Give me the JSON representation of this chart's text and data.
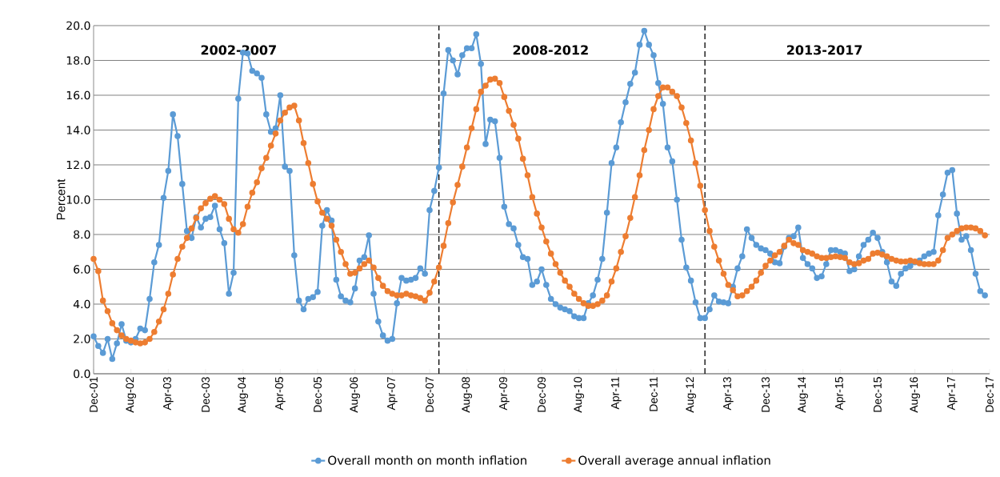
{
  "chart_data": {
    "type": "line",
    "ylabel": "Percent",
    "annotations": [
      "2002-2007",
      "2008-2012",
      "2013-2017"
    ],
    "x": [
      "2001-12",
      "2002-01",
      "2002-02",
      "2002-03",
      "2002-04",
      "2002-05",
      "2002-06",
      "2002-07",
      "2002-08",
      "2002-09",
      "2002-10",
      "2002-11",
      "2002-12",
      "2003-01",
      "2003-02",
      "2003-03",
      "2003-04",
      "2003-05",
      "2003-06",
      "2003-07",
      "2003-08",
      "2003-09",
      "2003-10",
      "2003-11",
      "2003-12",
      "2004-01",
      "2004-02",
      "2004-03",
      "2004-04",
      "2004-05",
      "2004-06",
      "2004-07",
      "2004-08",
      "2004-09",
      "2004-10",
      "2004-11",
      "2004-12",
      "2005-01",
      "2005-02",
      "2005-03",
      "2005-04",
      "2005-05",
      "2005-06",
      "2005-07",
      "2005-08",
      "2005-09",
      "2005-10",
      "2005-11",
      "2005-12",
      "2006-01",
      "2006-02",
      "2006-03",
      "2006-04",
      "2006-05",
      "2006-06",
      "2006-07",
      "2006-08",
      "2006-09",
      "2006-10",
      "2006-11",
      "2006-12",
      "2007-01",
      "2007-02",
      "2007-03",
      "2007-04",
      "2007-05",
      "2007-06",
      "2007-07",
      "2007-08",
      "2007-09",
      "2007-10",
      "2007-11",
      "2007-12",
      "2008-01",
      "2008-02",
      "2008-03",
      "2008-04",
      "2008-05",
      "2008-06",
      "2008-07",
      "2008-08",
      "2008-09",
      "2008-10",
      "2008-11",
      "2008-12",
      "2009-01",
      "2009-02",
      "2009-03",
      "2009-04",
      "2009-05",
      "2009-06",
      "2009-07",
      "2009-08",
      "2009-09",
      "2009-10",
      "2009-11",
      "2009-12",
      "2010-01",
      "2010-02",
      "2010-03",
      "2010-04",
      "2010-05",
      "2010-06",
      "2010-07",
      "2010-08",
      "2010-09",
      "2010-10",
      "2010-11",
      "2010-12",
      "2011-01",
      "2011-02",
      "2011-03",
      "2011-04",
      "2011-05",
      "2011-06",
      "2011-07",
      "2011-08",
      "2011-09",
      "2011-10",
      "2011-11",
      "2011-12",
      "2012-01",
      "2012-02",
      "2012-03",
      "2012-04",
      "2012-05",
      "2012-06",
      "2012-07",
      "2012-08",
      "2012-09",
      "2012-10",
      "2012-11",
      "2012-12",
      "2013-01",
      "2013-02",
      "2013-03",
      "2013-04",
      "2013-05",
      "2013-06",
      "2013-07",
      "2013-08",
      "2013-09",
      "2013-10",
      "2013-11",
      "2013-12",
      "2014-01",
      "2014-02",
      "2014-03",
      "2014-04",
      "2014-05",
      "2014-06",
      "2014-07",
      "2014-08",
      "2014-09",
      "2014-10",
      "2014-11",
      "2014-12",
      "2015-01",
      "2015-02",
      "2015-03",
      "2015-04",
      "2015-05",
      "2015-06",
      "2015-07",
      "2015-08",
      "2015-09",
      "2015-10",
      "2015-11",
      "2015-12",
      "2016-01",
      "2016-02",
      "2016-03",
      "2016-04",
      "2016-05",
      "2016-06",
      "2016-07",
      "2016-08",
      "2016-09",
      "2016-10",
      "2016-11",
      "2016-12",
      "2017-01",
      "2017-02",
      "2017-03",
      "2017-04",
      "2017-05",
      "2017-06",
      "2017-07",
      "2017-08",
      "2017-09",
      "2017-10",
      "2017-11"
    ],
    "series": [
      {
        "name": "Overall month on month inflation",
        "color": "#5b9bd5",
        "values": [
          2.15,
          1.6,
          1.2,
          2.0,
          0.85,
          1.75,
          2.85,
          1.9,
          1.8,
          2.0,
          2.6,
          2.5,
          4.3,
          6.4,
          7.4,
          10.1,
          11.65,
          14.9,
          13.65,
          10.9,
          8.2,
          7.8,
          9.0,
          8.4,
          8.9,
          9.0,
          9.65,
          8.3,
          7.5,
          4.6,
          5.8,
          15.8,
          18.45,
          18.4,
          17.4,
          17.25,
          17.0,
          14.9,
          13.9,
          14.1,
          16.0,
          11.9,
          11.65,
          6.8,
          4.2,
          3.7,
          4.3,
          4.4,
          4.7,
          8.5,
          9.4,
          8.8,
          5.4,
          4.45,
          4.2,
          4.1,
          4.9,
          6.5,
          6.7,
          7.95,
          4.6,
          3.0,
          2.2,
          1.9,
          2.0,
          4.05,
          5.5,
          5.35,
          5.4,
          5.5,
          6.05,
          5.75,
          9.4,
          10.5,
          11.85,
          16.1,
          18.6,
          18.0,
          17.2,
          18.3,
          18.7,
          18.7,
          19.5,
          17.8,
          13.2,
          14.6,
          14.5,
          12.4,
          9.6,
          8.6,
          8.35,
          7.4,
          6.7,
          6.6,
          5.1,
          5.3,
          6.0,
          5.1,
          4.3,
          4.0,
          3.8,
          3.7,
          3.6,
          3.3,
          3.2,
          3.2,
          4.05,
          4.5,
          5.4,
          6.6,
          9.25,
          12.1,
          13.0,
          14.45,
          15.6,
          16.65,
          17.3,
          18.9,
          19.7,
          18.9,
          18.3,
          16.7,
          15.5,
          13.0,
          12.2,
          10.0,
          7.7,
          6.1,
          5.35,
          4.1,
          3.2,
          3.2,
          3.7,
          4.5,
          4.15,
          4.1,
          4.05,
          5.0,
          6.05,
          6.75,
          8.3,
          7.8,
          7.4,
          7.2,
          7.1,
          6.9,
          6.4,
          6.35,
          7.3,
          7.8,
          7.9,
          8.4,
          6.65,
          6.3,
          6.05,
          5.5,
          5.6,
          6.3,
          7.1,
          7.1,
          7.0,
          6.9,
          5.9,
          6.0,
          6.75,
          7.4,
          7.7,
          8.1,
          7.8,
          7.0,
          6.4,
          5.3,
          5.05,
          5.75,
          6.05,
          6.2,
          6.4,
          6.5,
          6.75,
          6.9,
          7.0,
          9.1,
          10.3,
          11.55,
          11.7,
          9.2,
          7.7,
          7.9,
          7.1,
          5.75,
          4.75,
          4.5
        ]
      },
      {
        "name": "Overall average annual inflation",
        "color": "#ed7d31",
        "values": [
          6.6,
          5.9,
          4.2,
          3.6,
          2.9,
          2.5,
          2.2,
          2.0,
          1.9,
          1.8,
          1.75,
          1.8,
          2.0,
          2.4,
          3.0,
          3.7,
          4.6,
          5.7,
          6.6,
          7.3,
          7.8,
          8.35,
          8.95,
          9.5,
          9.8,
          10.05,
          10.2,
          10.0,
          9.75,
          8.9,
          8.3,
          8.1,
          8.6,
          9.6,
          10.4,
          11.0,
          11.8,
          12.4,
          13.1,
          13.8,
          14.55,
          15.0,
          15.3,
          15.4,
          14.55,
          13.25,
          12.1,
          10.9,
          9.9,
          9.25,
          8.9,
          8.5,
          7.7,
          7.0,
          6.3,
          5.75,
          5.8,
          6.05,
          6.3,
          6.5,
          6.1,
          5.5,
          5.05,
          4.75,
          4.6,
          4.5,
          4.5,
          4.6,
          4.5,
          4.45,
          4.35,
          4.2,
          4.65,
          5.3,
          6.1,
          7.35,
          8.65,
          9.85,
          10.85,
          11.9,
          13.0,
          14.1,
          15.2,
          16.2,
          16.55,
          16.9,
          16.95,
          16.7,
          15.9,
          15.1,
          14.3,
          13.5,
          12.35,
          11.4,
          10.15,
          9.2,
          8.4,
          7.6,
          6.9,
          6.3,
          5.8,
          5.35,
          5.0,
          4.6,
          4.3,
          4.05,
          3.9,
          3.9,
          4.0,
          4.2,
          4.5,
          5.3,
          6.05,
          7.0,
          7.9,
          8.95,
          10.15,
          11.4,
          12.85,
          14.0,
          15.2,
          15.95,
          16.45,
          16.45,
          16.2,
          15.95,
          15.3,
          14.4,
          13.4,
          12.1,
          10.8,
          9.4,
          8.2,
          7.3,
          6.5,
          5.75,
          5.1,
          4.8,
          4.45,
          4.5,
          4.75,
          5.0,
          5.35,
          5.8,
          6.2,
          6.5,
          6.8,
          7.0,
          7.35,
          7.7,
          7.5,
          7.4,
          7.1,
          7.0,
          6.9,
          6.75,
          6.65,
          6.65,
          6.7,
          6.75,
          6.7,
          6.65,
          6.4,
          6.3,
          6.35,
          6.5,
          6.6,
          6.9,
          6.95,
          6.85,
          6.75,
          6.6,
          6.5,
          6.45,
          6.45,
          6.5,
          6.45,
          6.35,
          6.3,
          6.3,
          6.3,
          6.5,
          7.1,
          7.8,
          8.0,
          8.2,
          8.35,
          8.4,
          8.4,
          8.35,
          8.2,
          7.95
        ]
      }
    ],
    "xlim": [
      "2001-12",
      "2017-12"
    ],
    "xticks": [
      {
        "value": "2001-12",
        "label": "Dec-01"
      },
      {
        "value": "2002-08",
        "label": "Aug-02"
      },
      {
        "value": "2003-04",
        "label": "Apr-03"
      },
      {
        "value": "2003-12",
        "label": "Dec-03"
      },
      {
        "value": "2004-08",
        "label": "Aug-04"
      },
      {
        "value": "2005-04",
        "label": "Apr-05"
      },
      {
        "value": "2005-12",
        "label": "Dec-05"
      },
      {
        "value": "2006-08",
        "label": "Aug-06"
      },
      {
        "value": "2007-04",
        "label": "Apr-07"
      },
      {
        "value": "2007-12",
        "label": "Dec-07"
      },
      {
        "value": "2008-08",
        "label": "Aug-08"
      },
      {
        "value": "2009-04",
        "label": "Apr-09"
      },
      {
        "value": "2009-12",
        "label": "Dec-09"
      },
      {
        "value": "2010-08",
        "label": "Aug-10"
      },
      {
        "value": "2011-04",
        "label": "Apr-11"
      },
      {
        "value": "2011-12",
        "label": "Dec-11"
      },
      {
        "value": "2012-08",
        "label": "Aug-12"
      },
      {
        "value": "2013-04",
        "label": "Apr-13"
      },
      {
        "value": "2013-12",
        "label": "Dec-13"
      },
      {
        "value": "2014-08",
        "label": "Aug-14"
      },
      {
        "value": "2015-04",
        "label": "Apr-15"
      },
      {
        "value": "2015-12",
        "label": "Dec-15"
      },
      {
        "value": "2016-08",
        "label": "Aug-16"
      },
      {
        "value": "2017-04",
        "label": "Apr-17"
      },
      {
        "value": "2017-12",
        "label": "Dec-17"
      }
    ],
    "ylim": [
      0,
      20
    ],
    "yticks": [
      {
        "value": 0,
        "label": "0.0"
      },
      {
        "value": 2,
        "label": "2.0"
      },
      {
        "value": 4,
        "label": "4.0"
      },
      {
        "value": 6,
        "label": "6.0"
      },
      {
        "value": 8,
        "label": "8.0"
      },
      {
        "value": 10,
        "label": "10.0"
      },
      {
        "value": 12,
        "label": "12.0"
      },
      {
        "value": 14,
        "label": "14.0"
      },
      {
        "value": 16,
        "label": "16.0"
      },
      {
        "value": 18,
        "label": "18.0"
      },
      {
        "value": 20,
        "label": "20.0"
      }
    ],
    "ref_lines": [
      {
        "axis": "x",
        "value": "2008-02",
        "color": "#000000",
        "line_style": "dashed"
      },
      {
        "axis": "x",
        "value": "2012-11",
        "color": "#000000",
        "line_style": "dashed"
      }
    ],
    "grid": "y",
    "legend": "bottom",
    "marker": "circle",
    "line_style": "solid"
  }
}
